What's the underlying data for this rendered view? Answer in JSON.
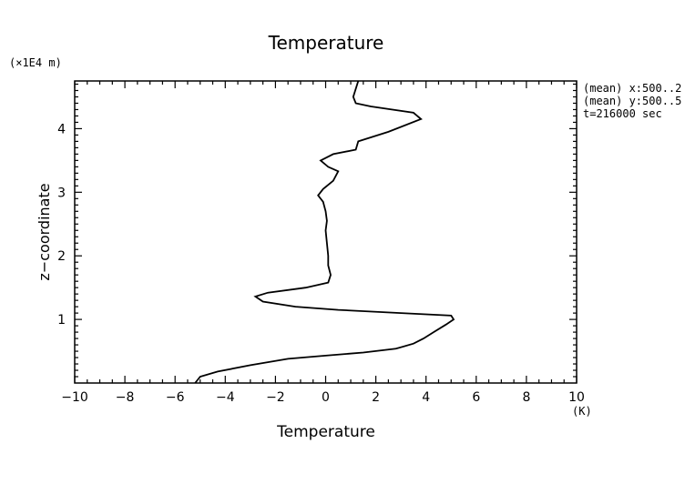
{
  "chart_data": {
    "type": "line",
    "title": "Temperature",
    "xlabel": "Temperature",
    "xunit": "(K)",
    "ylabel": "z−coordinate",
    "yunit": "(×1E4 m)",
    "xlim": [
      -10,
      10
    ],
    "ylim": [
      0,
      4.75
    ],
    "xticks": [
      -10,
      -8,
      -6,
      -4,
      -2,
      0,
      2,
      4,
      6,
      8,
      10
    ],
    "xtick_labels": [
      "−10",
      "−8",
      "−6",
      "−4",
      "−2",
      "0",
      "2",
      "4",
      "6",
      "8",
      "10"
    ],
    "yticks": [
      1,
      2,
      3,
      4
    ],
    "ytick_labels": [
      "1",
      "2",
      "3",
      "4"
    ],
    "grid": false,
    "annotations": [
      "(mean) x:500..2",
      "(mean) y:500..5",
      "t=216000 sec"
    ],
    "series": [
      {
        "points": [
          [
            -5.2,
            0.0
          ],
          [
            -5.0,
            0.1
          ],
          [
            -4.3,
            0.18
          ],
          [
            -3.0,
            0.28
          ],
          [
            -1.5,
            0.38
          ],
          [
            0.0,
            0.43
          ],
          [
            1.5,
            0.48
          ],
          [
            2.8,
            0.54
          ],
          [
            3.5,
            0.62
          ],
          [
            3.9,
            0.7
          ],
          [
            4.3,
            0.8
          ],
          [
            4.8,
            0.92
          ],
          [
            5.1,
            1.0
          ],
          [
            5.0,
            1.06
          ],
          [
            3.0,
            1.1
          ],
          [
            0.5,
            1.15
          ],
          [
            -1.2,
            1.2
          ],
          [
            -2.5,
            1.28
          ],
          [
            -2.8,
            1.36
          ],
          [
            -2.3,
            1.42
          ],
          [
            -0.8,
            1.5
          ],
          [
            0.1,
            1.58
          ],
          [
            0.2,
            1.7
          ],
          [
            0.1,
            1.85
          ],
          [
            0.1,
            2.0
          ],
          [
            0.05,
            2.2
          ],
          [
            0.0,
            2.4
          ],
          [
            0.05,
            2.55
          ],
          [
            0.0,
            2.7
          ],
          [
            -0.1,
            2.85
          ],
          [
            -0.3,
            2.95
          ],
          [
            -0.1,
            3.05
          ],
          [
            0.3,
            3.18
          ],
          [
            0.5,
            3.33
          ],
          [
            0.1,
            3.4
          ],
          [
            -0.2,
            3.5
          ],
          [
            0.3,
            3.6
          ],
          [
            1.2,
            3.67
          ],
          [
            1.3,
            3.8
          ],
          [
            2.5,
            3.95
          ],
          [
            3.8,
            4.15
          ],
          [
            3.5,
            4.25
          ],
          [
            1.8,
            4.35
          ],
          [
            1.2,
            4.4
          ],
          [
            1.1,
            4.5
          ],
          [
            1.3,
            4.75
          ]
        ]
      }
    ]
  }
}
